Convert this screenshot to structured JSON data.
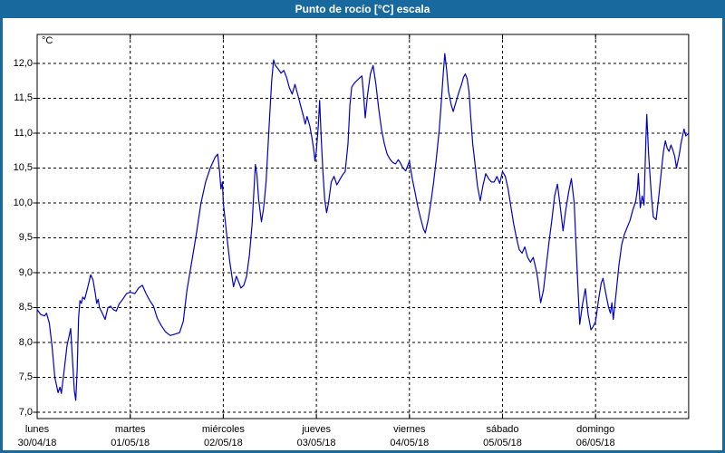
{
  "window": {
    "title": "Punto de rocío [°C] escala"
  },
  "colors": {
    "titlebar": "#17699E",
    "frame": "#17699E",
    "background": "#FFFFFF",
    "grid": "#000000",
    "axis_text": "#000000",
    "title_text": "#FFFFFF",
    "line": "#0000C8"
  },
  "chart_data": {
    "type": "line",
    "title": "Punto de rocío [°C] escala",
    "ylabel": "°C",
    "ylim": [
      6.95,
      12.42
    ],
    "grid": "dashed, horizontal every 0.5°C and vertical at each day boundary",
    "legend": "none",
    "yticks": [
      {
        "label": "12,0",
        "value": 12.0
      },
      {
        "label": "11,5",
        "value": 11.5
      },
      {
        "label": "11,0",
        "value": 11.0
      },
      {
        "label": "10,5",
        "value": 10.5
      },
      {
        "label": "10,0",
        "value": 10.0
      },
      {
        "label": "9,5",
        "value": 9.5
      },
      {
        "label": "9,0",
        "value": 9.0
      },
      {
        "label": "8,5",
        "value": 8.5
      },
      {
        "label": "8,0",
        "value": 8.0
      },
      {
        "label": "7,5",
        "value": 7.5
      },
      {
        "label": "7,0",
        "value": 7.0
      }
    ],
    "days": [
      {
        "weekday": "lunes",
        "date": "30/04/18"
      },
      {
        "weekday": "martes",
        "date": "01/05/18"
      },
      {
        "weekday": "miércoles",
        "date": "02/05/18"
      },
      {
        "weekday": "jueves",
        "date": "03/05/18"
      },
      {
        "weekday": "viernes",
        "date": "04/05/18"
      },
      {
        "weekday": "sábado",
        "date": "05/05/18"
      },
      {
        "weekday": "domingo",
        "date": "06/05/18"
      }
    ],
    "series": [
      {
        "name": "Punto de rocío",
        "color": "#0000C8",
        "x_unit": "days since 30/04/18 00:00",
        "points": [
          [
            0.0,
            8.47
          ],
          [
            0.04,
            8.4
          ],
          [
            0.08,
            8.38
          ],
          [
            0.1,
            8.42
          ],
          [
            0.13,
            8.28
          ],
          [
            0.16,
            7.95
          ],
          [
            0.19,
            7.5
          ],
          [
            0.225,
            7.28
          ],
          [
            0.245,
            7.36
          ],
          [
            0.26,
            7.27
          ],
          [
            0.29,
            7.6
          ],
          [
            0.32,
            7.95
          ],
          [
            0.345,
            8.1
          ],
          [
            0.36,
            8.2
          ],
          [
            0.38,
            7.75
          ],
          [
            0.4,
            7.3
          ],
          [
            0.415,
            7.17
          ],
          [
            0.43,
            7.62
          ],
          [
            0.445,
            8.35
          ],
          [
            0.46,
            8.6
          ],
          [
            0.475,
            8.56
          ],
          [
            0.49,
            8.65
          ],
          [
            0.51,
            8.62
          ],
          [
            0.545,
            8.8
          ],
          [
            0.575,
            8.97
          ],
          [
            0.6,
            8.9
          ],
          [
            0.625,
            8.7
          ],
          [
            0.64,
            8.56
          ],
          [
            0.655,
            8.62
          ],
          [
            0.67,
            8.5
          ],
          [
            0.7,
            8.42
          ],
          [
            0.73,
            8.33
          ],
          [
            0.76,
            8.5
          ],
          [
            0.79,
            8.52
          ],
          [
            0.82,
            8.47
          ],
          [
            0.85,
            8.45
          ],
          [
            0.88,
            8.55
          ],
          [
            0.92,
            8.62
          ],
          [
            0.96,
            8.7
          ],
          [
            1.0,
            8.72
          ],
          [
            1.05,
            8.7
          ],
          [
            1.09,
            8.78
          ],
          [
            1.13,
            8.82
          ],
          [
            1.17,
            8.7
          ],
          [
            1.21,
            8.6
          ],
          [
            1.25,
            8.52
          ],
          [
            1.29,
            8.35
          ],
          [
            1.33,
            8.25
          ],
          [
            1.38,
            8.15
          ],
          [
            1.43,
            8.1
          ],
          [
            1.48,
            8.12
          ],
          [
            1.53,
            8.14
          ],
          [
            1.57,
            8.3
          ],
          [
            1.61,
            8.75
          ],
          [
            1.66,
            9.15
          ],
          [
            1.71,
            9.55
          ],
          [
            1.76,
            10.0
          ],
          [
            1.81,
            10.3
          ],
          [
            1.86,
            10.5
          ],
          [
            1.91,
            10.65
          ],
          [
            1.94,
            10.7
          ],
          [
            1.96,
            10.45
          ],
          [
            1.975,
            10.2
          ],
          [
            1.99,
            10.3
          ],
          [
            2.0,
            10.0
          ],
          [
            2.02,
            9.75
          ],
          [
            2.04,
            9.5
          ],
          [
            2.07,
            9.15
          ],
          [
            2.1,
            8.88
          ],
          [
            2.11,
            8.8
          ],
          [
            2.14,
            8.95
          ],
          [
            2.17,
            8.85
          ],
          [
            2.19,
            8.78
          ],
          [
            2.22,
            8.82
          ],
          [
            2.25,
            8.95
          ],
          [
            2.28,
            9.25
          ],
          [
            2.31,
            9.7
          ],
          [
            2.33,
            10.2
          ],
          [
            2.345,
            10.55
          ],
          [
            2.36,
            10.42
          ],
          [
            2.38,
            10.05
          ],
          [
            2.41,
            9.73
          ],
          [
            2.43,
            9.9
          ],
          [
            2.44,
            10.02
          ],
          [
            2.46,
            10.3
          ],
          [
            2.48,
            10.8
          ],
          [
            2.5,
            11.3
          ],
          [
            2.52,
            11.75
          ],
          [
            2.54,
            12.05
          ],
          [
            2.56,
            11.97
          ],
          [
            2.59,
            11.92
          ],
          [
            2.62,
            11.86
          ],
          [
            2.65,
            11.9
          ],
          [
            2.68,
            11.8
          ],
          [
            2.71,
            11.65
          ],
          [
            2.74,
            11.56
          ],
          [
            2.77,
            11.7
          ],
          [
            2.8,
            11.55
          ],
          [
            2.83,
            11.4
          ],
          [
            2.86,
            11.25
          ],
          [
            2.88,
            11.13
          ],
          [
            2.9,
            11.24
          ],
          [
            2.93,
            11.1
          ],
          [
            2.95,
            10.95
          ],
          [
            2.97,
            10.78
          ],
          [
            2.985,
            10.6
          ],
          [
            3.0,
            10.75
          ],
          [
            3.02,
            11.1
          ],
          [
            3.035,
            11.47
          ],
          [
            3.05,
            11.0
          ],
          [
            3.07,
            10.45
          ],
          [
            3.09,
            10.05
          ],
          [
            3.11,
            9.86
          ],
          [
            3.13,
            10.0
          ],
          [
            3.16,
            10.3
          ],
          [
            3.19,
            10.38
          ],
          [
            3.22,
            10.26
          ],
          [
            3.25,
            10.33
          ],
          [
            3.28,
            10.4
          ],
          [
            3.31,
            10.45
          ],
          [
            3.34,
            10.85
          ],
          [
            3.36,
            11.4
          ],
          [
            3.38,
            11.66
          ],
          [
            3.41,
            11.72
          ],
          [
            3.44,
            11.76
          ],
          [
            3.47,
            11.8
          ],
          [
            3.49,
            11.82
          ],
          [
            3.51,
            11.5
          ],
          [
            3.525,
            11.22
          ],
          [
            3.55,
            11.55
          ],
          [
            3.58,
            11.85
          ],
          [
            3.61,
            11.97
          ],
          [
            3.64,
            11.7
          ],
          [
            3.67,
            11.35
          ],
          [
            3.7,
            11.05
          ],
          [
            3.73,
            10.85
          ],
          [
            3.76,
            10.7
          ],
          [
            3.79,
            10.63
          ],
          [
            3.82,
            10.58
          ],
          [
            3.85,
            10.56
          ],
          [
            3.88,
            10.62
          ],
          [
            3.9,
            10.58
          ],
          [
            3.93,
            10.5
          ],
          [
            3.96,
            10.46
          ],
          [
            4.0,
            10.6
          ],
          [
            4.03,
            10.35
          ],
          [
            4.06,
            10.15
          ],
          [
            4.09,
            9.95
          ],
          [
            4.12,
            9.78
          ],
          [
            4.15,
            9.63
          ],
          [
            4.17,
            9.57
          ],
          [
            4.2,
            9.75
          ],
          [
            4.23,
            10.0
          ],
          [
            4.26,
            10.3
          ],
          [
            4.29,
            10.65
          ],
          [
            4.32,
            11.05
          ],
          [
            4.34,
            11.4
          ],
          [
            4.36,
            11.8
          ],
          [
            4.38,
            12.14
          ],
          [
            4.4,
            11.9
          ],
          [
            4.42,
            11.6
          ],
          [
            4.45,
            11.4
          ],
          [
            4.47,
            11.31
          ],
          [
            4.5,
            11.45
          ],
          [
            4.53,
            11.58
          ],
          [
            4.56,
            11.7
          ],
          [
            4.58,
            11.8
          ],
          [
            4.6,
            11.85
          ],
          [
            4.62,
            11.78
          ],
          [
            4.64,
            11.6
          ],
          [
            4.66,
            11.2
          ],
          [
            4.68,
            10.85
          ],
          [
            4.71,
            10.5
          ],
          [
            4.73,
            10.25
          ],
          [
            4.76,
            10.03
          ],
          [
            4.79,
            10.25
          ],
          [
            4.82,
            10.42
          ],
          [
            4.85,
            10.35
          ],
          [
            4.88,
            10.3
          ],
          [
            4.91,
            10.3
          ],
          [
            4.94,
            10.38
          ],
          [
            4.97,
            10.28
          ],
          [
            5.0,
            10.45
          ],
          [
            5.03,
            10.38
          ],
          [
            5.06,
            10.2
          ],
          [
            5.09,
            9.95
          ],
          [
            5.12,
            9.7
          ],
          [
            5.15,
            9.5
          ],
          [
            5.18,
            9.33
          ],
          [
            5.21,
            9.28
          ],
          [
            5.24,
            9.37
          ],
          [
            5.27,
            9.22
          ],
          [
            5.3,
            9.15
          ],
          [
            5.33,
            9.22
          ],
          [
            5.36,
            9.05
          ],
          [
            5.38,
            8.9
          ],
          [
            5.41,
            8.57
          ],
          [
            5.44,
            8.75
          ],
          [
            5.47,
            9.1
          ],
          [
            5.5,
            9.45
          ],
          [
            5.53,
            9.75
          ],
          [
            5.56,
            10.1
          ],
          [
            5.59,
            10.27
          ],
          [
            5.62,
            9.95
          ],
          [
            5.65,
            9.6
          ],
          [
            5.68,
            9.9
          ],
          [
            5.71,
            10.15
          ],
          [
            5.74,
            10.35
          ],
          [
            5.77,
            10.0
          ],
          [
            5.79,
            9.4
          ],
          [
            5.81,
            8.8
          ],
          [
            5.83,
            8.26
          ],
          [
            5.86,
            8.55
          ],
          [
            5.89,
            8.77
          ],
          [
            5.92,
            8.4
          ],
          [
            5.95,
            8.18
          ],
          [
            5.97,
            8.22
          ],
          [
            6.0,
            8.3
          ],
          [
            6.03,
            8.6
          ],
          [
            6.06,
            8.85
          ],
          [
            6.08,
            8.92
          ],
          [
            6.11,
            8.7
          ],
          [
            6.14,
            8.5
          ],
          [
            6.16,
            8.42
          ],
          [
            6.175,
            8.57
          ],
          [
            6.19,
            8.33
          ],
          [
            6.22,
            8.7
          ],
          [
            6.25,
            9.1
          ],
          [
            6.28,
            9.4
          ],
          [
            6.31,
            9.55
          ],
          [
            6.34,
            9.65
          ],
          [
            6.37,
            9.75
          ],
          [
            6.4,
            9.9
          ],
          [
            6.43,
            10.02
          ],
          [
            6.45,
            10.2
          ],
          [
            6.46,
            10.42
          ],
          [
            6.48,
            9.93
          ],
          [
            6.5,
            10.1
          ],
          [
            6.52,
            9.97
          ],
          [
            6.54,
            10.9
          ],
          [
            6.55,
            11.27
          ],
          [
            6.57,
            10.7
          ],
          [
            6.6,
            10.1
          ],
          [
            6.62,
            9.8
          ],
          [
            6.65,
            9.76
          ],
          [
            6.68,
            10.1
          ],
          [
            6.71,
            10.5
          ],
          [
            6.73,
            10.75
          ],
          [
            6.75,
            10.89
          ],
          [
            6.77,
            10.78
          ],
          [
            6.79,
            10.74
          ],
          [
            6.81,
            10.83
          ],
          [
            6.83,
            10.76
          ],
          [
            6.85,
            10.67
          ],
          [
            6.87,
            10.5
          ],
          [
            6.9,
            10.7
          ],
          [
            6.92,
            10.87
          ],
          [
            6.95,
            11.06
          ],
          [
            6.97,
            10.96
          ],
          [
            7.0,
            11.0
          ]
        ]
      }
    ]
  }
}
